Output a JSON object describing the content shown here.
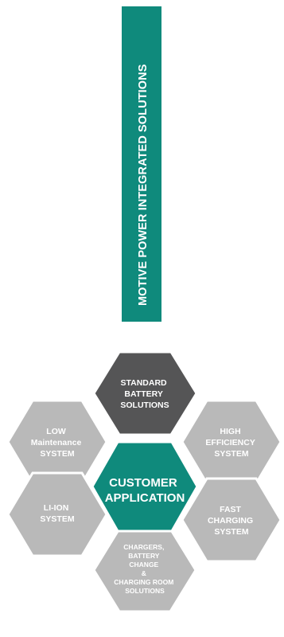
{
  "colors": {
    "teal": "#0f8a7c",
    "dark_gray": "#555556",
    "light_gray": "#b9b9b9",
    "border_white": "#ffffff",
    "text": "#ffffff"
  },
  "title_bar": {
    "label": "MOTIVE POWER INTEGRATED SOLUTIONS"
  },
  "hexagons": {
    "standard": {
      "lines": [
        "STANDARD",
        "BATTERY",
        "SOLUTIONS"
      ]
    },
    "low_maintenance": {
      "lines": [
        "LOW",
        "Maintenance",
        "SYSTEM"
      ]
    },
    "high_efficiency": {
      "lines": [
        "HIGH",
        "EFFICIENCY",
        "SYSTEM"
      ]
    },
    "customer": {
      "lines": [
        "CUSTOMER",
        "APPLICATION"
      ]
    },
    "li_ion": {
      "lines": [
        "LI-ION",
        "SYSTEM"
      ]
    },
    "fast_charging": {
      "lines": [
        "FAST",
        "CHARGING",
        "SYSTEM"
      ]
    },
    "chargers": {
      "lines": [
        "CHARGERS,",
        "BATTERY",
        "CHANGE",
        "&",
        "CHARGING ROOM",
        "SOLUTIONS"
      ]
    }
  }
}
